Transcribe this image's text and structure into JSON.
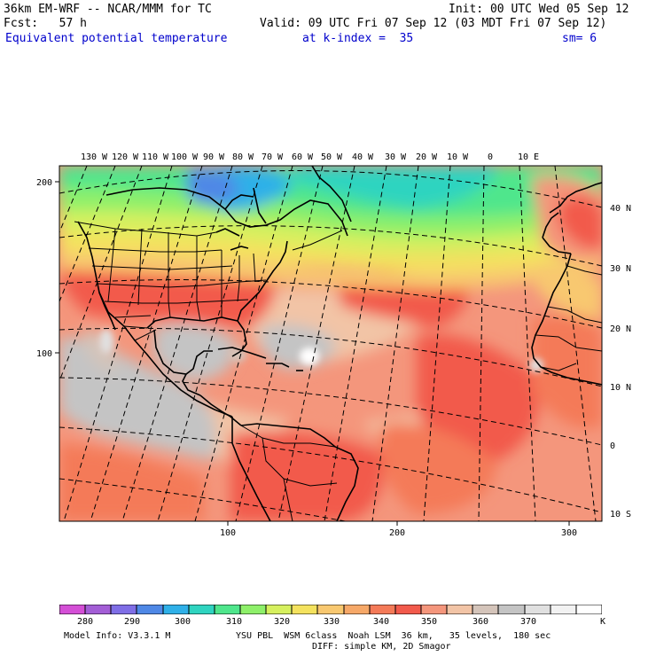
{
  "header": {
    "model": "36km EM-WRF -- NCAR/MMM for TC",
    "init": "Init: 00 UTC Wed 05 Sep 12",
    "fcst": "Fcst:   57 h",
    "valid": "Valid: 09 UTC Fri 07 Sep 12 (03 MDT Fri 07 Sep 12)",
    "field": "Equivalent potential temperature",
    "level": "at k-index =  35",
    "smooth": "sm= 6"
  },
  "map": {
    "lon_labels": [
      "130 W",
      "120 W",
      "110 W",
      "100 W",
      "90 W",
      "80 W",
      "70 W",
      "60 W",
      "50 W",
      "40 W",
      "30 W",
      "20 W",
      "10 W",
      "0",
      "10 E"
    ],
    "lat_labels": [
      "40 N",
      "30 N",
      "20 N",
      "10 N",
      "0",
      "10 S"
    ],
    "left_ticks": [
      "200",
      "100"
    ],
    "bottom_ticks": [
      "100",
      "200",
      "300"
    ]
  },
  "colorbar": {
    "colors": [
      "#d44fd6",
      "#a35ed6",
      "#7f6ee6",
      "#4f88e6",
      "#2fb0e8",
      "#2fd4c0",
      "#4fe68c",
      "#8ef06a",
      "#d6f05e",
      "#f4e25e",
      "#f8c870",
      "#f6a868",
      "#f47a58",
      "#f25a4c",
      "#f4967c",
      "#f2c4a6",
      "#d4c4ba",
      "#c4c4c4",
      "#e0e0e0",
      "#f2f2f2",
      "#ffffff"
    ],
    "labels": [
      "280",
      "290",
      "300",
      "310",
      "320",
      "330",
      "340",
      "350",
      "360",
      "370"
    ],
    "unit": "K"
  },
  "footer": {
    "model_info": "Model Info: V3.3.1 M",
    "physics": "YSU PBL  WSM 6class  Noah LSM  36 km,   35 levels,  180 sec",
    "physics2": "DIFF: simple KM, 2D Smagor"
  }
}
